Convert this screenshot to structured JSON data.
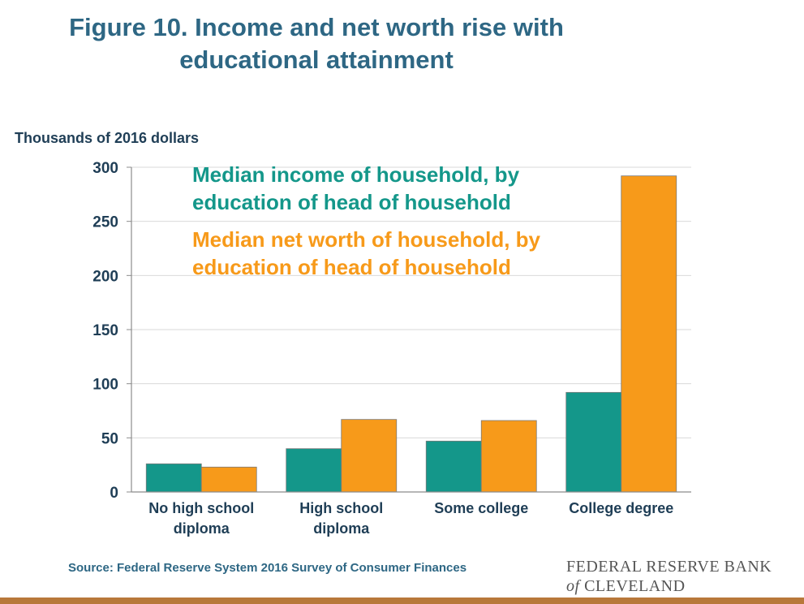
{
  "header": {
    "title_line1": "Figure 10. Income and net worth rise with",
    "title_line2": "educational attainment"
  },
  "footer": {
    "source": "Source: Federal Reserve System 2016 Survey of Consumer Finances",
    "logo_line1": "FEDERAL RESERVE BANK",
    "logo_of": "of",
    "logo_line2": "CLEVELAND"
  },
  "colors": {
    "income": "#14978a",
    "net_worth": "#f79a1a",
    "title": "#2e6784",
    "bottom_bar": "#b8783a"
  },
  "chart_data": {
    "type": "bar",
    "title": "Figure 10. Income and net worth rise with educational attainment",
    "ylabel": "Thousands of 2016 dollars",
    "xlabel": "",
    "ylim": [
      0,
      300
    ],
    "yticks": [
      0,
      50,
      100,
      150,
      200,
      250,
      300
    ],
    "grid": true,
    "legend_position": "top-left",
    "categories": [
      [
        "No high school",
        "diploma"
      ],
      [
        "High school",
        "diploma"
      ],
      [
        "Some college"
      ],
      [
        "College degree"
      ]
    ],
    "series": [
      {
        "name_lines": [
          "Median income of household, by",
          "education of head of household"
        ],
        "color": "#14978a",
        "values": [
          26,
          40,
          47,
          92
        ]
      },
      {
        "name_lines": [
          "Median net worth of household, by",
          "education of head of household"
        ],
        "color": "#f79a1a",
        "values": [
          23,
          67,
          66,
          292
        ]
      }
    ]
  }
}
